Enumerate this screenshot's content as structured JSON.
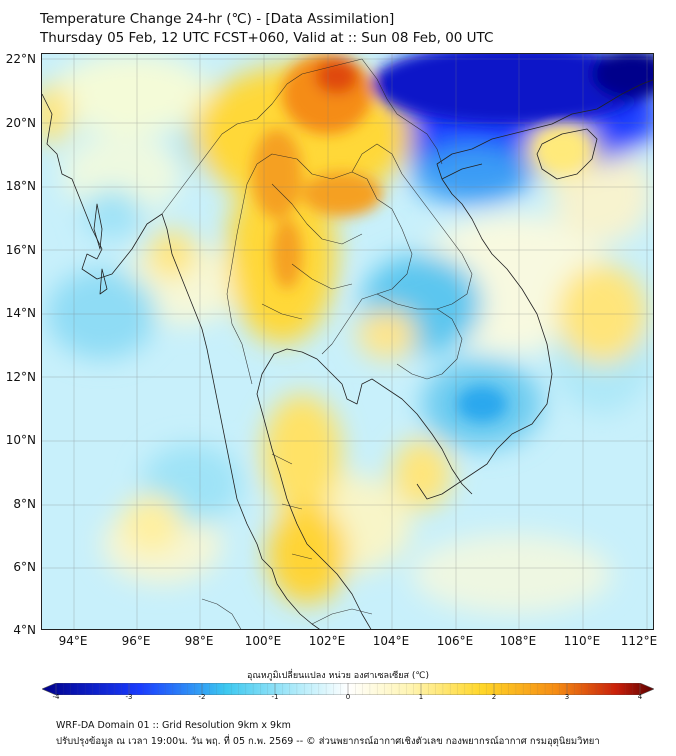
{
  "header": {
    "title_line1": "Temperature Change 24-hr (℃) - [Data Assimilation]",
    "title_line2": "Thursday 05 Feb, 12 UTC FCST+060, Valid at :: Sun 08 Feb, 00 UTC"
  },
  "axes": {
    "y_labels": [
      "22°N",
      "20°N",
      "18°N",
      "16°N",
      "14°N",
      "12°N",
      "10°N",
      "8°N",
      "6°N",
      "4°N"
    ],
    "x_labels": [
      "94°E",
      "96°E",
      "98°E",
      "100°E",
      "102°E",
      "104°E",
      "106°E",
      "108°E",
      "110°E",
      "112°E"
    ]
  },
  "colorbar": {
    "title": "อุณหภูมิเปลี่ยนแปลง หน่วย องศาเซลเซียส (℃)",
    "ticks": [
      "-4",
      "-3",
      "-2",
      "-1",
      "0",
      "1",
      "2",
      "3",
      "4"
    ],
    "min": -4,
    "max": 4,
    "colors": {
      "deep_blue": "#00008b",
      "blue": "#1a3cff",
      "cyan": "#3cc8f0",
      "light_cyan": "#b4ecfa",
      "white": "#ffffff",
      "pale_yellow": "#fff5b4",
      "yellow": "#ffd628",
      "orange": "#f58c14",
      "red": "#c81e0a",
      "dark_red": "#5a0000"
    }
  },
  "footer": {
    "line1": "WRF-DA Domain 01 :: Grid Resolution 9km x 9km",
    "line2": "ปรับปรุงข้อมูล ณ เวลา 19:00น. วัน พฤ. ที่ 05 ก.พ. 2569 -- © ส่วนพยากรณ์อากาศเชิงตัวเลข กองพยากรณ์อากาศ กรมอุตุนิยมวิทยา"
  }
}
